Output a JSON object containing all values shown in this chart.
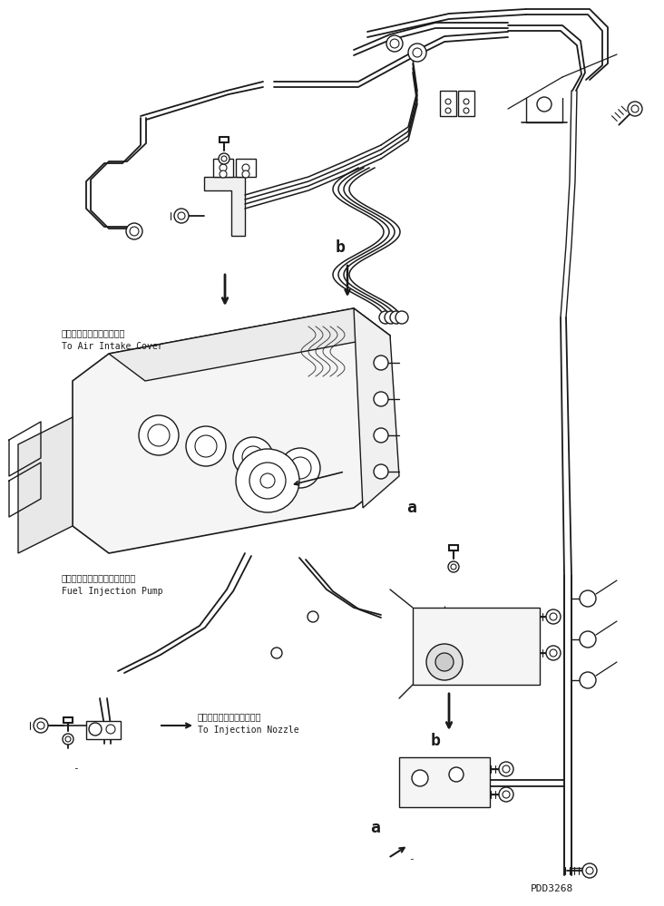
{
  "background_color": "#ffffff",
  "line_color": "#1a1a1a",
  "fig_width": 7.32,
  "fig_height": 9.99,
  "dpi": 100,
  "labels": {
    "air_intake_jp": "エアーインテークカバーへ",
    "air_intake_en": "To Air Intake Cover",
    "fuel_pump_jp": "フェルインジェクションポンプ",
    "fuel_pump_en": "Fuel Injection Pump",
    "injection_jp": "インジェクションノズルへ",
    "injection_en": "To Injection Nozzle",
    "label_a": "a",
    "label_b": "b",
    "part_number": "PDD3268",
    "dash": "-"
  },
  "font_size_jp": 7.0,
  "font_size_en": 7.0,
  "font_size_label": 11
}
